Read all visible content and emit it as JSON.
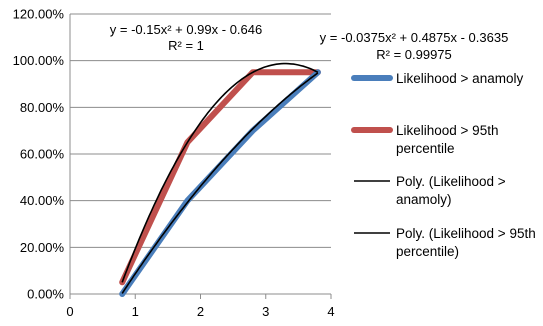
{
  "chart_data": {
    "type": "line",
    "xlim": [
      0,
      4
    ],
    "ylim": [
      0,
      120
    ],
    "x_ticks": [
      "0",
      "1",
      "2",
      "3",
      "4"
    ],
    "y_ticks": [
      "0.00%",
      "20.00%",
      "40.00%",
      "60.00%",
      "80.00%",
      "100.00%",
      "120.00%"
    ],
    "grid": "horizontal",
    "legend_position": "right",
    "series": [
      {
        "name": "Likelihood > anamoly",
        "kind": "data",
        "color": "#4a7ebb",
        "x": [
          0.8,
          1.8,
          2.8,
          3.8
        ],
        "y": [
          0,
          40,
          70,
          95
        ]
      },
      {
        "name": "Likelihood > 95th percentile",
        "kind": "data",
        "color": "#c0504d",
        "x": [
          0.8,
          1.8,
          2.8,
          3.8
        ],
        "y": [
          5,
          65,
          95,
          95
        ]
      },
      {
        "name": "Poly. (Likelihood > anamoly)",
        "kind": "trendline",
        "color": "#000000",
        "coef": [
          -0.0375,
          0.4875,
          -0.3635
        ],
        "x_range": [
          0.8,
          3.8
        ]
      },
      {
        "name": "Poly. (Likelihood > 95th percentile)",
        "kind": "trendline",
        "color": "#000000",
        "coef": [
          -0.15,
          0.99,
          -0.646
        ],
        "x_range": [
          0.8,
          3.8
        ]
      }
    ],
    "annotations": [
      {
        "id": "eq1",
        "line1": "y = -0.15x² + 0.99x - 0.646",
        "line2": "R² = 1"
      },
      {
        "id": "eq2",
        "line1": "y = -0.0375x² + 0.4875x - 0.3635",
        "line2": "R² = 0.99975"
      }
    ]
  }
}
